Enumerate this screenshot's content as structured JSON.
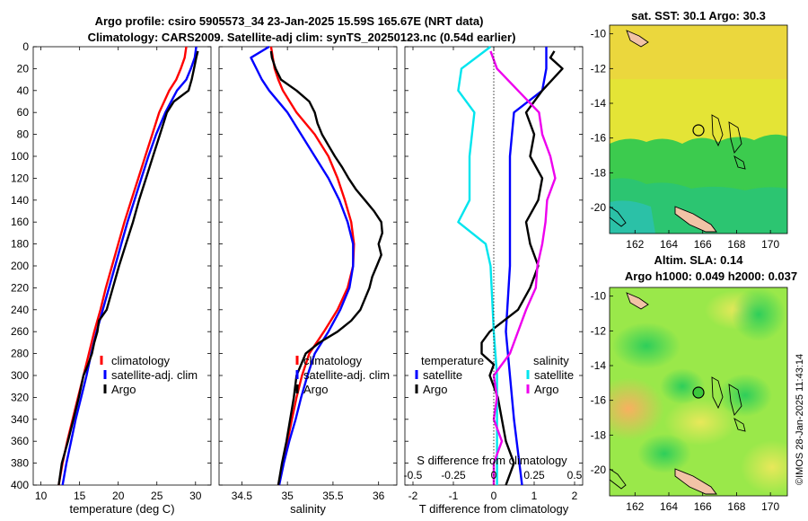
{
  "titles": {
    "line1": "Argo profile: csiro 5905573_34 23-Jan-2025 15.59S 165.67E (NRT data)",
    "line2": "Climatology: CARS2009. Satellite-adj clim: synTS_20250123.nc (0.54d earlier)"
  },
  "timestamp": "©IMOS 28-Jan-2025 11:43:14",
  "colors": {
    "clim": "#ff0000",
    "sat": "#0000ff",
    "argo": "#000000",
    "cyan": "#00e5ee",
    "magenta": "#ee00ee"
  },
  "chart_data": [
    {
      "type": "line",
      "id": "temperature",
      "xlabel": "temperature (deg C)",
      "xlim": [
        9,
        32
      ],
      "ylim": [
        0,
        400
      ],
      "y_reversed": true,
      "xticks": [
        10,
        15,
        20,
        25,
        30
      ],
      "yticks": [
        0,
        20,
        40,
        60,
        80,
        100,
        120,
        140,
        160,
        180,
        200,
        220,
        240,
        260,
        280,
        300,
        320,
        340,
        360,
        380,
        400
      ],
      "legend": [
        "climatology",
        "satellite-adj. clim",
        "Argo"
      ],
      "series": [
        {
          "name": "climatology",
          "depth": [
            0,
            10,
            20,
            30,
            40,
            60,
            80,
            100,
            120,
            140,
            160,
            180,
            200,
            220,
            240,
            260,
            280,
            300,
            320,
            340,
            360,
            380,
            400
          ],
          "values": [
            28.8,
            28.6,
            28.1,
            27.5,
            26.6,
            25.3,
            24.4,
            23.5,
            22.6,
            21.7,
            20.8,
            20.0,
            19.2,
            18.4,
            17.7,
            16.9,
            16.2,
            15.5,
            14.8,
            14.1,
            13.4,
            12.8,
            12.3
          ]
        },
        {
          "name": "satellite-adj. clim",
          "depth": [
            0,
            10,
            20,
            30,
            40,
            60,
            80,
            100,
            120,
            140,
            160,
            180,
            200,
            220,
            240,
            260,
            280,
            300,
            320,
            340,
            360,
            380,
            400
          ],
          "values": [
            30.1,
            29.9,
            29.4,
            28.8,
            27.6,
            26.1,
            24.9,
            23.9,
            23.0,
            22.1,
            21.2,
            20.4,
            19.6,
            18.8,
            18.0,
            17.2,
            16.5,
            15.9,
            15.2,
            14.5,
            13.9,
            13.3,
            12.8
          ]
        },
        {
          "name": "Argo",
          "depth": [
            4,
            10,
            20,
            30,
            40,
            50,
            60,
            80,
            100,
            120,
            140,
            160,
            180,
            200,
            220,
            240,
            250,
            260,
            270,
            280,
            290,
            300,
            310,
            320,
            340,
            360,
            380,
            400
          ],
          "values": [
            30.3,
            30.1,
            29.8,
            29.5,
            29.1,
            27.2,
            26.3,
            25.4,
            24.5,
            23.6,
            22.7,
            21.9,
            21.0,
            20.1,
            19.3,
            18.5,
            17.5,
            17.3,
            16.9,
            16.6,
            16.1,
            15.5,
            15.2,
            14.9,
            14.2,
            13.5,
            12.7,
            12.3
          ]
        }
      ]
    },
    {
      "type": "line",
      "id": "salinity",
      "xlabel": "salinity",
      "xlim": [
        34.25,
        36.2
      ],
      "ylim": [
        0,
        400
      ],
      "y_reversed": true,
      "xticks": [
        "34.5",
        "35",
        "35.5",
        "36"
      ],
      "legend": [
        "climatology",
        "satellite-adj. clim",
        "Argo"
      ],
      "series": [
        {
          "name": "climatology",
          "depth": [
            0,
            10,
            20,
            30,
            40,
            60,
            80,
            100,
            120,
            140,
            160,
            180,
            200,
            220,
            240,
            260,
            280,
            300,
            320,
            340,
            360,
            380,
            400
          ],
          "values": [
            34.82,
            34.84,
            34.86,
            34.9,
            34.95,
            35.1,
            35.3,
            35.45,
            35.55,
            35.63,
            35.7,
            35.73,
            35.72,
            35.66,
            35.55,
            35.4,
            35.24,
            35.16,
            35.1,
            35.05,
            35.0,
            34.95,
            34.9
          ]
        },
        {
          "name": "satellite-adj. clim",
          "depth": [
            0,
            10,
            20,
            30,
            40,
            60,
            80,
            100,
            120,
            140,
            160,
            180,
            200,
            220,
            240,
            260,
            280,
            300,
            320,
            340,
            360,
            380,
            400
          ],
          "values": [
            34.8,
            34.6,
            34.66,
            34.72,
            34.8,
            35.0,
            35.15,
            35.3,
            35.45,
            35.57,
            35.66,
            35.72,
            35.72,
            35.68,
            35.58,
            35.45,
            35.3,
            35.22,
            35.15,
            35.09,
            35.02,
            34.96,
            34.91
          ]
        },
        {
          "name": "Argo",
          "depth": [
            4,
            10,
            20,
            30,
            40,
            50,
            60,
            70,
            80,
            90,
            100,
            110,
            120,
            130,
            140,
            150,
            160,
            170,
            180,
            190,
            200,
            210,
            220,
            230,
            240,
            250,
            260,
            270,
            280,
            290,
            300,
            320,
            340,
            360,
            380,
            400
          ],
          "values": [
            34.82,
            34.83,
            34.87,
            34.93,
            35.1,
            35.24,
            35.3,
            35.33,
            35.38,
            35.45,
            35.52,
            35.6,
            35.67,
            35.75,
            35.85,
            35.95,
            36.03,
            36.04,
            36.0,
            36.03,
            35.98,
            35.93,
            35.9,
            35.85,
            35.8,
            35.7,
            35.55,
            35.35,
            35.2,
            35.15,
            35.1,
            35.07,
            35.03,
            34.99,
            34.94,
            34.9
          ]
        }
      ]
    },
    {
      "type": "line",
      "id": "differences",
      "xlabel": "T difference from climatology",
      "xlabel_top": "S difference from climatology",
      "xlim": [
        -2.2,
        2.2
      ],
      "ylim": [
        0,
        400
      ],
      "y_reversed": true,
      "xticks": [
        "-2",
        "-1",
        "0",
        "1",
        "2"
      ],
      "s_ticks": [
        "-0.5",
        "-0.25",
        "0",
        "0.25",
        "0.5"
      ],
      "legend_titles": [
        "temperature",
        "salinity"
      ],
      "legend_left": [
        "satellite",
        "Argo"
      ],
      "legend_right": [
        "satellite",
        "Argo"
      ],
      "series": [
        {
          "name": "temperature satellite",
          "depth": [
            0,
            10,
            20,
            40,
            60,
            100,
            140,
            160,
            180,
            200,
            260,
            300,
            340,
            400
          ],
          "values": [
            1.3,
            1.3,
            1.3,
            1.2,
            0.5,
            0.4,
            0.4,
            0.4,
            0.4,
            0.4,
            0.3,
            0.4,
            0.5,
            0.7
          ]
        },
        {
          "name": "temperature Argo",
          "depth": [
            4,
            10,
            20,
            40,
            60,
            80,
            100,
            120,
            140,
            160,
            180,
            200,
            220,
            240,
            260,
            270,
            280,
            290,
            300,
            320,
            340,
            360,
            380,
            400
          ],
          "values": [
            1.5,
            1.4,
            1.7,
            1.2,
            0.8,
            1.0,
            0.9,
            1.2,
            1.1,
            0.8,
            0.9,
            1.1,
            0.9,
            0.6,
            -0.1,
            -0.3,
            -0.3,
            0.0,
            -0.1,
            0.1,
            0.2,
            0.3,
            0.5,
            0.3
          ]
        },
        {
          "name": "salinity satellite",
          "depth": [
            0,
            20,
            40,
            60,
            100,
            140,
            160,
            180,
            200,
            260,
            300,
            340,
            400
          ],
          "values": [
            -0.02,
            -0.2,
            -0.22,
            -0.12,
            -0.15,
            -0.15,
            -0.22,
            -0.05,
            -0.02,
            0.0,
            0.02,
            0.02,
            0.02
          ]
        },
        {
          "name": "salinity Argo",
          "depth": [
            4,
            20,
            40,
            60,
            80,
            100,
            120,
            140,
            160,
            180,
            200,
            220,
            240,
            260,
            280,
            300,
            320,
            340,
            360,
            380,
            400
          ],
          "values": [
            -0.02,
            0.02,
            0.15,
            0.28,
            0.3,
            0.35,
            0.38,
            0.33,
            0.32,
            0.3,
            0.27,
            0.26,
            0.2,
            0.15,
            0.1,
            0.0,
            0.02,
            0.0,
            0.05,
            0.0,
            0.0
          ]
        }
      ]
    },
    {
      "type": "heatmap",
      "id": "sst_map",
      "title": "sat. SST: 30.1 Argo: 30.3",
      "xticks": [
        "162",
        "164",
        "166",
        "168",
        "170"
      ],
      "yticks": [
        "-10",
        "-12",
        "-14",
        "-16",
        "-18",
        "-20"
      ],
      "xlim": [
        160.5,
        171.0
      ],
      "ylim": [
        -21.5,
        -9.5
      ],
      "profile_location": [
        165.67,
        -15.59
      ]
    },
    {
      "type": "heatmap",
      "id": "sla_map",
      "title1": "Altim. SLA: 0.14",
      "title2": "Argo h1000: 0.049 h2000: 0.037",
      "xticks": [
        "162",
        "164",
        "166",
        "168",
        "170"
      ],
      "yticks": [
        "-10",
        "-12",
        "-14",
        "-16",
        "-18",
        "-20"
      ],
      "xlim": [
        160.5,
        171.0
      ],
      "ylim": [
        -21.5,
        -9.5
      ],
      "profile_location": [
        165.67,
        -15.59
      ]
    }
  ]
}
